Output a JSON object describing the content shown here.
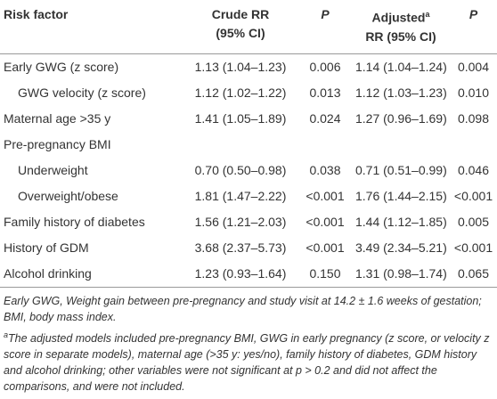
{
  "header": {
    "risk_factor": "Risk factor",
    "crude_rr": "Crude RR",
    "crude_ci": "(95% CI)",
    "p1": "P",
    "adjusted": "Adjusted",
    "adjusted_marker": "a",
    "adjusted_ci": "RR (95% CI)",
    "p2": "P"
  },
  "table": {
    "rows": [
      [
        "Early GWG (z score)",
        "1.13 (1.04–1.23)",
        "0.006",
        "1.14 (1.04–1.24)",
        "0.004"
      ],
      [
        "GWG velocity (z score)",
        "1.12 (1.02–1.22)",
        "0.013",
        "1.12 (1.03–1.23)",
        "0.010"
      ],
      [
        "Maternal age >35 y",
        "1.41 (1.05–1.89)",
        "0.024",
        "1.27 (0.96–1.69)",
        "0.098"
      ],
      [
        "Pre-pregnancy BMI"
      ],
      [
        "Underweight",
        "0.70 (0.50–0.98)",
        "0.038",
        "0.71 (0.51–0.99)",
        "0.046"
      ],
      [
        "Overweight/obese",
        "1.81 (1.47–2.22)",
        "<0.001",
        "1.76 (1.44–2.15)",
        "<0.001"
      ],
      [
        "Family history of diabetes",
        "1.56 (1.21–2.03)",
        "<0.001",
        "1.44 (1.12–1.85)",
        "0.005"
      ],
      [
        "History of GDM",
        "3.68 (2.37–5.73)",
        "<0.001",
        "3.49 (2.34–5.21)",
        "<0.001"
      ],
      [
        "Alcohol drinking",
        "1.23 (0.93–1.64)",
        "0.150",
        "1.31 (0.98–1.74)",
        "0.065"
      ]
    ]
  },
  "footnotes": [
    {
      "text": "Early GWG, Weight gain between pre-pregnancy and study visit at 14.2 ± 1.6 weeks of gestation; BMI, body mass index."
    },
    {
      "marker": "a",
      "text": "The adjusted models included pre-pregnancy BMI, GWG in early pregnancy (z score, or velocity z score in separate models), maternal age (>35 y: yes/no), family history of diabetes, GDM history and alcohol drinking; other variables were not significant at p > 0.2 and did not affect the comparisons, and were not included."
    }
  ]
}
